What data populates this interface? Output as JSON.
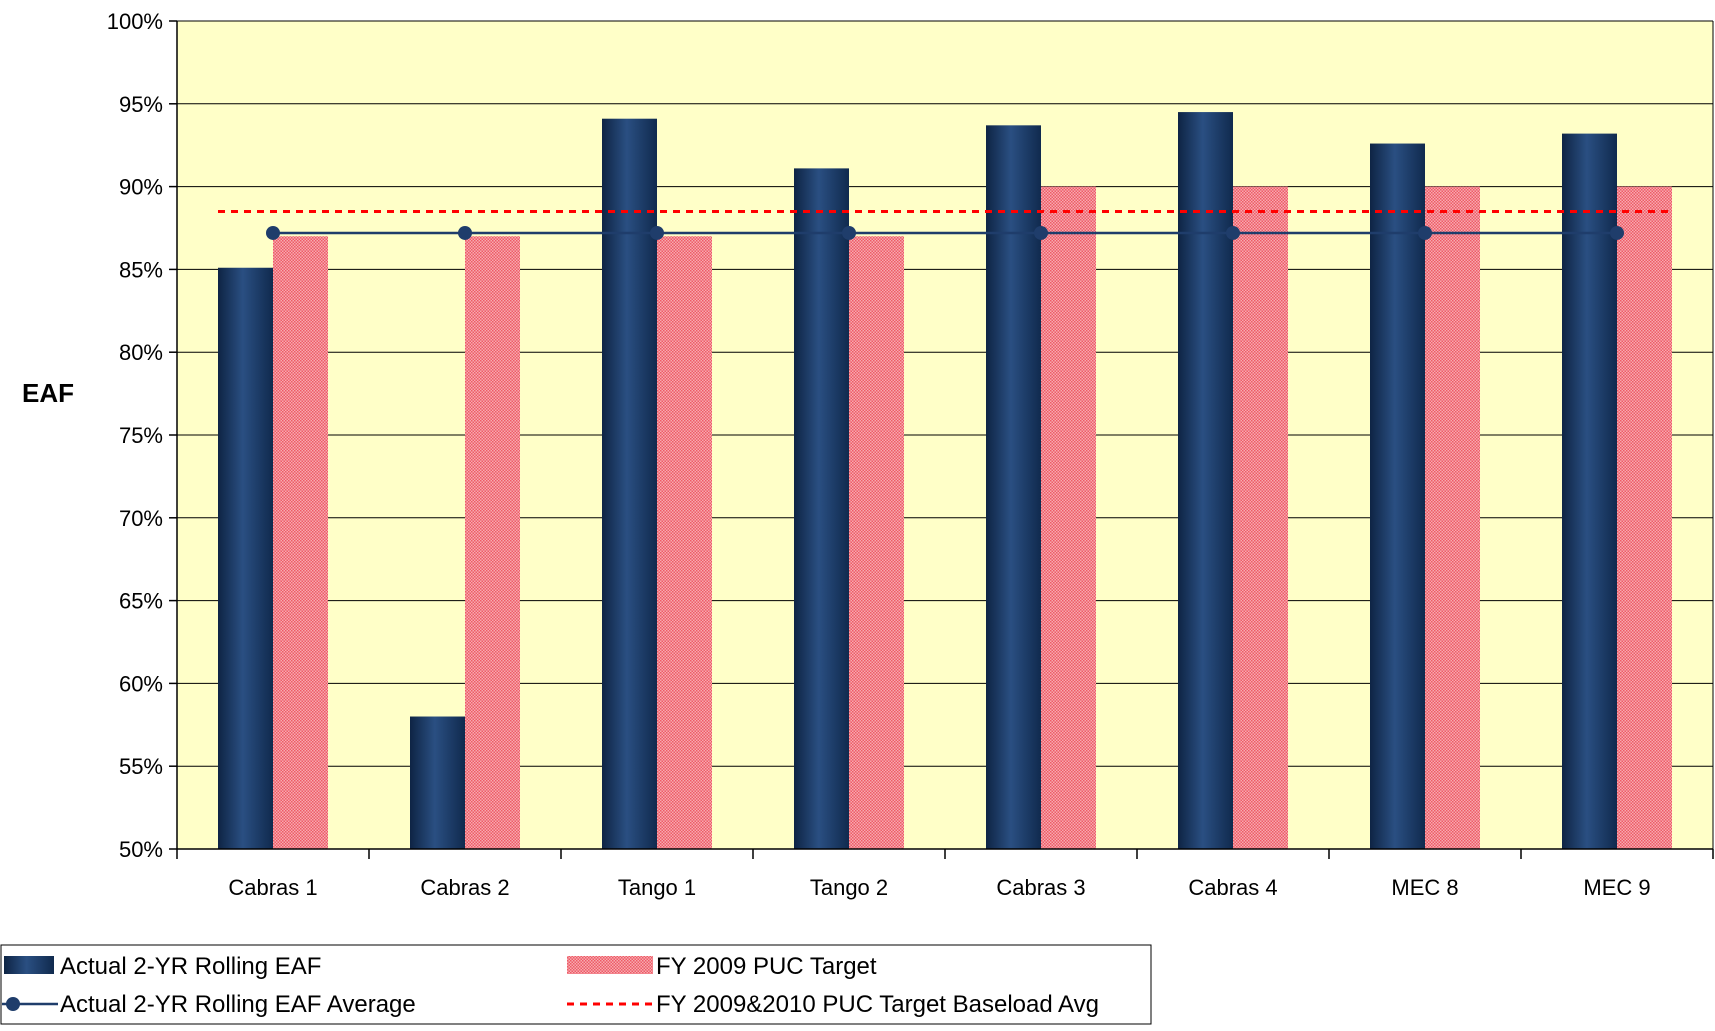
{
  "chart_data": {
    "type": "bar",
    "title": "",
    "xlabel": "",
    "ylabel": "EAF",
    "ylim": [
      0.5,
      1.0
    ],
    "yticks": [
      {
        "value": 0.5,
        "label": "50%"
      },
      {
        "value": 0.55,
        "label": "55%"
      },
      {
        "value": 0.6,
        "label": "60%"
      },
      {
        "value": 0.65,
        "label": "65%"
      },
      {
        "value": 0.7,
        "label": "70%"
      },
      {
        "value": 0.75,
        "label": "75%"
      },
      {
        "value": 0.8,
        "label": "80%"
      },
      {
        "value": 0.85,
        "label": "85%"
      },
      {
        "value": 0.9,
        "label": "90%"
      },
      {
        "value": 0.95,
        "label": "95%"
      },
      {
        "value": 1.0,
        "label": "100%"
      }
    ],
    "categories": [
      "Cabras 1",
      "Cabras 2",
      "Tango 1",
      "Tango 2",
      "Cabras 3",
      "Cabras 4",
      "MEC 8",
      "MEC 9"
    ],
    "series": [
      {
        "name": "Actual 2-YR Rolling EAF",
        "kind": "bar",
        "color": "#1f3d6b",
        "values": [
          0.851,
          0.58,
          0.941,
          0.911,
          0.937,
          0.945,
          0.926,
          0.932
        ]
      },
      {
        "name": "FY 2009 PUC Target",
        "kind": "bar",
        "color": "#f4929a",
        "values": [
          0.87,
          0.87,
          0.87,
          0.87,
          0.9,
          0.9,
          0.9,
          0.9
        ]
      },
      {
        "name": "Actual 2-YR Rolling EAF Average",
        "kind": "line-markers",
        "color": "#1f3d6b",
        "values": [
          0.872,
          0.872,
          0.872,
          0.872,
          0.872,
          0.872,
          0.872,
          0.872
        ]
      },
      {
        "name": "FY 2009&2010 PUC Target Baseload Avg",
        "kind": "dashed-line",
        "color": "#ff0000",
        "values": [
          0.885,
          0.885,
          0.885,
          0.885,
          0.885,
          0.885,
          0.885,
          0.885
        ]
      }
    ],
    "plot_background": "#ffffc8",
    "grid": true,
    "legend_position": "bottom-left"
  }
}
